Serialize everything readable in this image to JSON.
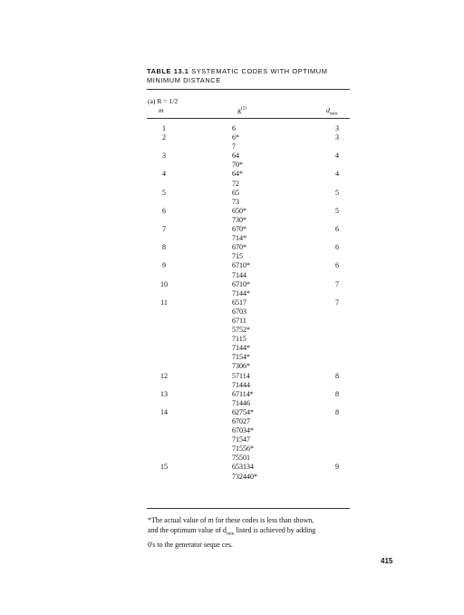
{
  "table": {
    "number": "TABLE 13.1",
    "caption": "SYSTEMATIC CODES WITH OPTIMUM MINIMUM DISTANCE",
    "subheading": "(a) R = 1/2",
    "col_m": "m",
    "col_g": "g",
    "col_g_sup": "(2)",
    "col_d": "d",
    "col_d_sub": "min",
    "rows": [
      {
        "m": "1",
        "g": [
          "6"
        ],
        "d": "3"
      },
      {
        "m": "2",
        "g": [
          "6*",
          "7"
        ],
        "d": "3"
      },
      {
        "m": "3",
        "g": [
          "64",
          "70*"
        ],
        "d": "4"
      },
      {
        "m": "4",
        "g": [
          "64*",
          "72"
        ],
        "d": "4"
      },
      {
        "m": "5",
        "g": [
          "65",
          "73"
        ],
        "d": "5"
      },
      {
        "m": "6",
        "g": [
          "650*",
          "730*"
        ],
        "d": "5"
      },
      {
        "m": "7",
        "g": [
          "670*",
          "714*"
        ],
        "d": "6"
      },
      {
        "m": "8",
        "g": [
          "670*",
          "715"
        ],
        "d": "6"
      },
      {
        "m": "9",
        "g": [
          "6710*",
          "7144"
        ],
        "d": "6"
      },
      {
        "m": "10",
        "g": [
          "6710*",
          "7144*"
        ],
        "d": "7"
      },
      {
        "m": "11",
        "g": [
          "6517",
          "6703",
          "6711",
          "5752*",
          "7115",
          "7144*",
          "7154*",
          "7306*"
        ],
        "d": "7"
      },
      {
        "m": "12",
        "g": [
          "57114",
          "71444"
        ],
        "d": "8"
      },
      {
        "m": "13",
        "g": [
          "67114*",
          "71446"
        ],
        "d": "8"
      },
      {
        "m": "14",
        "g": [
          "62754*",
          "67027",
          "67034*",
          "71547",
          "71556*",
          "75501"
        ],
        "d": "8"
      },
      {
        "m": "15",
        "g": [
          "653134",
          "732440*"
        ],
        "d": "9"
      }
    ]
  },
  "footnote": {
    "line1": "*The actual value of m for these codes is less than shown,",
    "line2a": "and the optimum value of d",
    "line2sub": "min",
    "line2b": " listed is achieved by adding",
    "line3": "0's to the generator seque ces."
  },
  "page_number": "415"
}
